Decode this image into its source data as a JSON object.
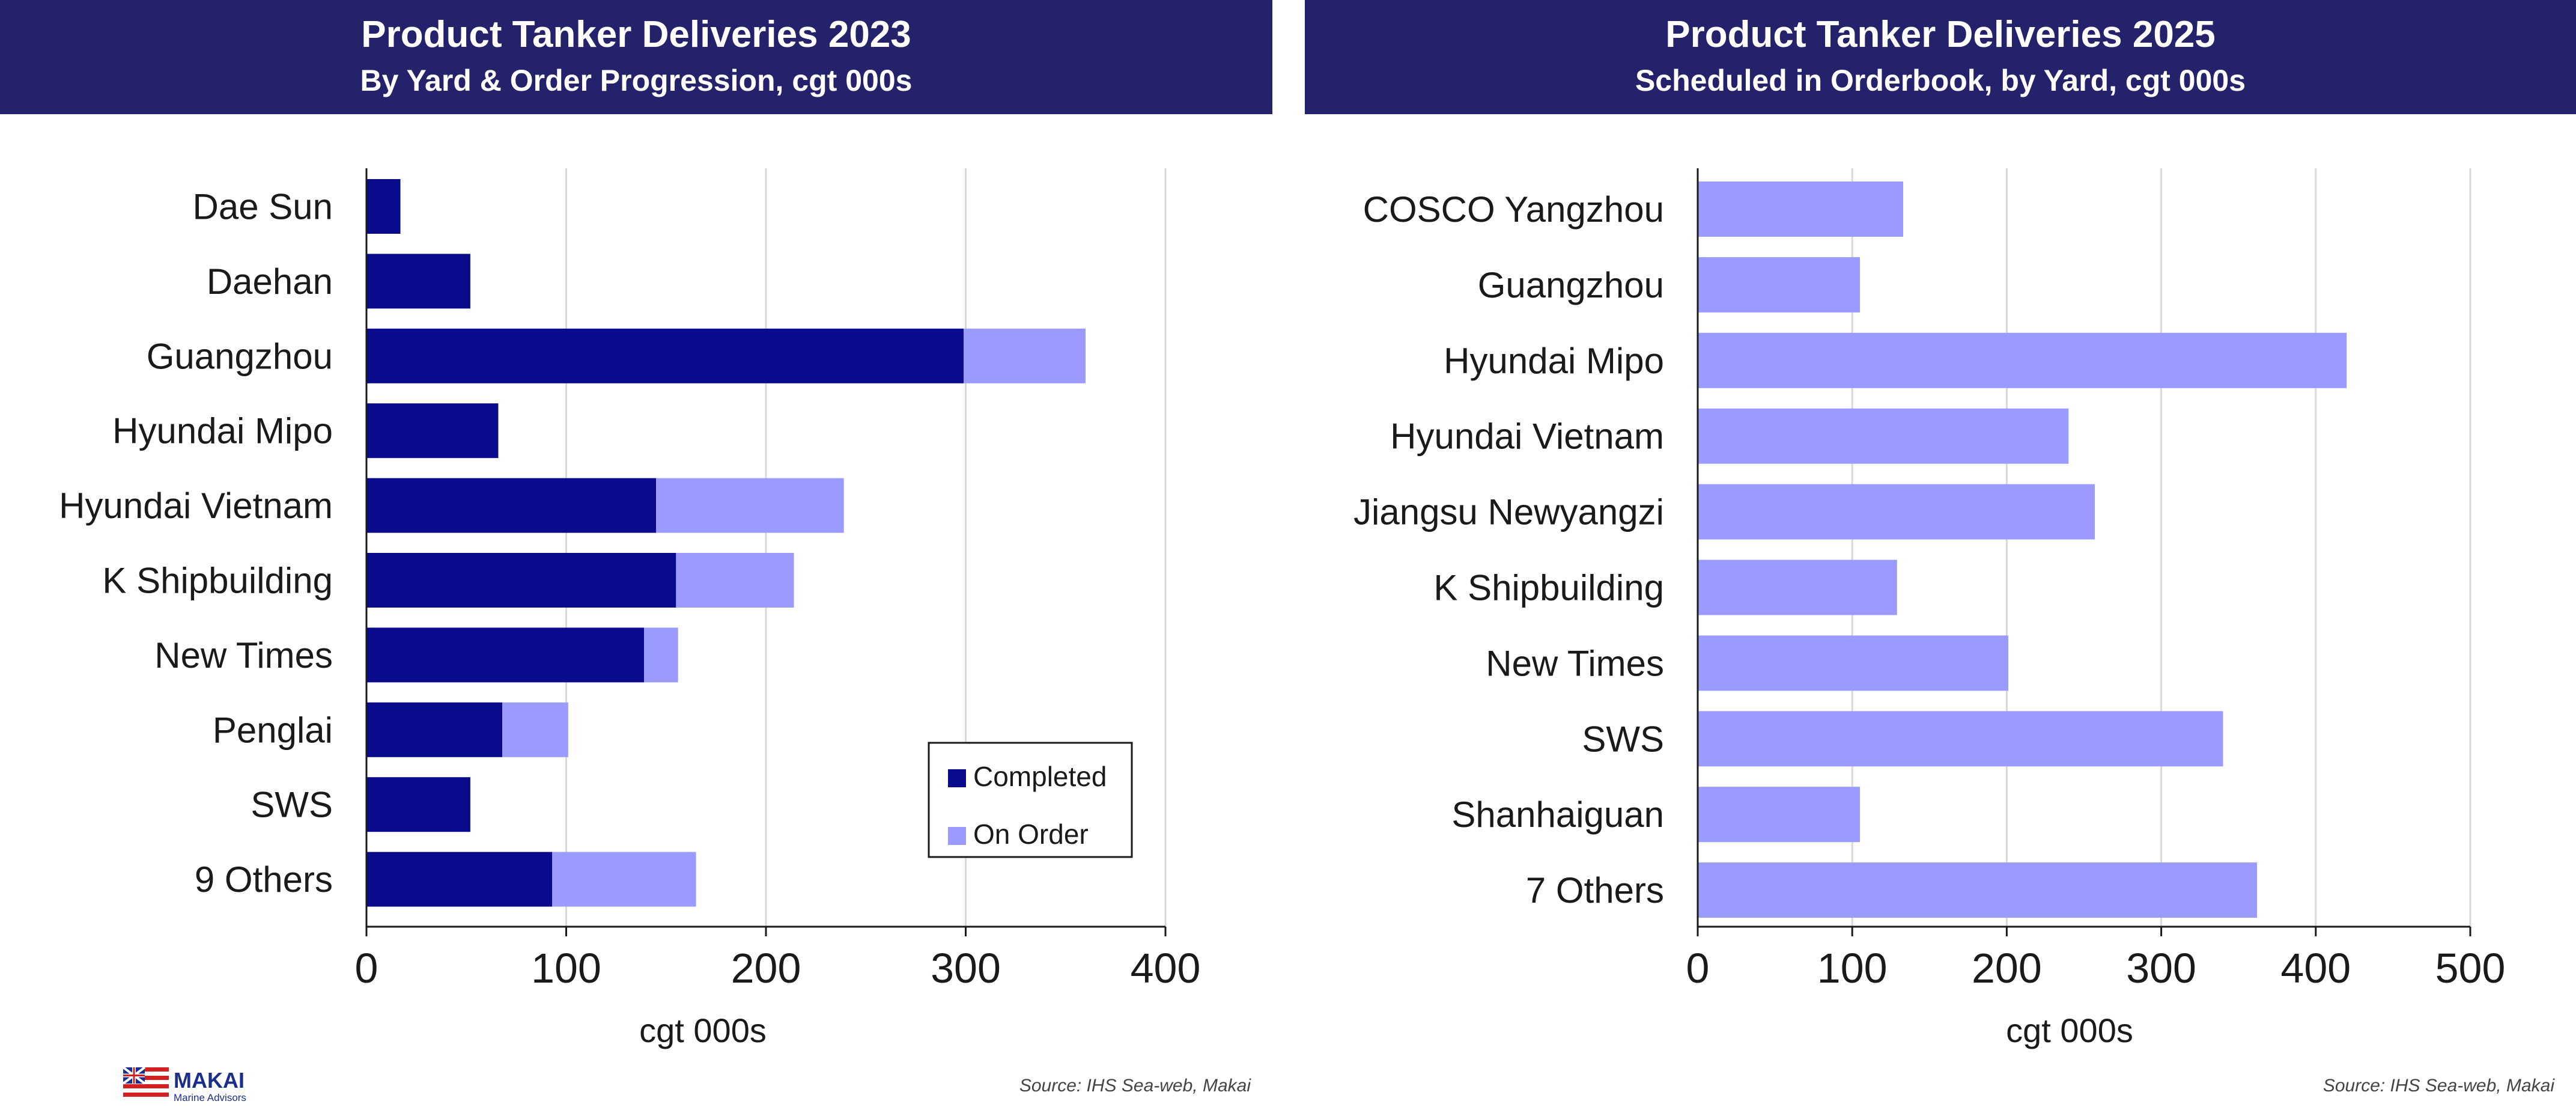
{
  "left_panel": {
    "title": "Product Tanker Deliveries 2023",
    "subtitle": "By Yard & Order Progression, cgt 000s",
    "source": "Source: IHS Sea-web, Makai"
  },
  "right_panel": {
    "title": "Product Tanker Deliveries 2025",
    "subtitle": "Scheduled in Orderbook, by Yard, cgt 000s",
    "source": "Source: IHS Sea-web, Makai"
  },
  "logo": {
    "name": "MAKAI",
    "tagline": "Marine Advisors"
  },
  "colors": {
    "banner": "#23226b",
    "completed": "#0a0a8c",
    "on_order": "#9b9bff",
    "grid": "#d9d9d9"
  },
  "chart_data": [
    {
      "type": "bar",
      "orientation": "horizontal",
      "stacked": true,
      "categories": [
        "Dae Sun",
        "Daehan",
        "Guangzhou",
        "Hyundai Mipo",
        "Hyundai Vietnam",
        "K Shipbuilding",
        "New Times",
        "Penglai",
        "SWS",
        "9 Others"
      ],
      "series": [
        {
          "name": "Completed",
          "color": "#0a0a8c",
          "values": [
            17,
            52,
            299,
            66,
            145,
            155,
            139,
            68,
            52,
            93
          ]
        },
        {
          "name": "On Order",
          "color": "#9b9bff",
          "values": [
            0,
            0,
            61,
            0,
            94,
            59,
            17,
            33,
            0,
            72
          ]
        }
      ],
      "xlabel": "cgt 000s",
      "xlim": [
        0,
        400
      ],
      "xticks": [
        0,
        100,
        200,
        300,
        400
      ],
      "grid": true,
      "legend": "bottom-right"
    },
    {
      "type": "bar",
      "orientation": "horizontal",
      "stacked": false,
      "categories": [
        "COSCO Yangzhou",
        "Guangzhou",
        "Hyundai Mipo",
        "Hyundai Vietnam",
        "Jiangsu Newyangzi",
        "K Shipbuilding",
        "New Times",
        "SWS",
        "Shanhaiguan",
        "7 Others"
      ],
      "series": [
        {
          "color": "#9b9bff",
          "values": [
            133,
            105,
            420,
            240,
            257,
            129,
            201,
            340,
            105,
            362
          ]
        }
      ],
      "xlabel": "cgt 000s",
      "xlim": [
        0,
        500
      ],
      "xticks": [
        0,
        100,
        200,
        300,
        400,
        500
      ],
      "grid": true
    }
  ]
}
